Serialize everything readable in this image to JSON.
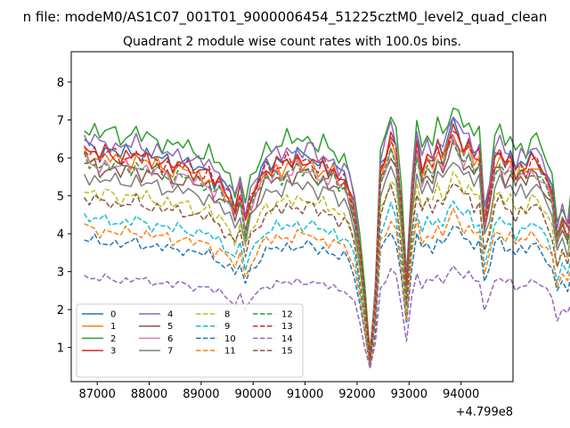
{
  "figure_title": "n file: modeM0/AS1C07_001T01_9000006454_51225cztM0_level2_quad_clean",
  "chart_data": {
    "type": "line",
    "title": "Quadrant 2 module wise count rates with 100.0s bins.",
    "xlabel": "",
    "ylabel": "",
    "x_offset_label": "+4.799e8",
    "xlim": [
      86500,
      95000
    ],
    "ylim": [
      0.1,
      8.8
    ],
    "x_ticks": [
      87000,
      88000,
      89000,
      90000,
      91000,
      92000,
      93000,
      94000
    ],
    "x_tick_labels": [
      "87000",
      "88000",
      "89000",
      "90000",
      "91000",
      "92000",
      "93000",
      "94000"
    ],
    "y_ticks": [
      1,
      2,
      3,
      4,
      5,
      6,
      7,
      8
    ],
    "y_tick_labels": [
      "1",
      "2",
      "3",
      "4",
      "5",
      "6",
      "7",
      "8"
    ],
    "grid": false,
    "legend_position": "lower-left",
    "legend_columns": 4,
    "x_start": 86750,
    "x_step": 100,
    "base_profile": [
      1.0,
      0.97,
      0.99,
      0.95,
      0.98,
      0.96,
      0.97,
      0.94,
      0.97,
      0.95,
      0.98,
      0.94,
      0.96,
      0.93,
      0.95,
      0.92,
      0.94,
      0.9,
      0.93,
      0.91,
      0.92,
      0.89,
      0.9,
      0.88,
      0.9,
      0.84,
      0.86,
      0.81,
      0.8,
      0.74,
      0.82,
      0.68,
      0.78,
      0.82,
      0.87,
      0.92,
      0.9,
      0.94,
      0.91,
      0.95,
      0.92,
      0.96,
      0.93,
      0.95,
      0.94,
      0.9,
      0.93,
      0.89,
      0.91,
      0.86,
      0.88,
      0.82,
      0.74,
      0.56,
      0.35,
      0.12,
      0.38,
      0.9,
      0.96,
      1.04,
      0.98,
      0.74,
      0.42,
      0.8,
      1.02,
      0.9,
      0.96,
      0.92,
      1.0,
      0.95,
      1.02,
      1.08,
      1.04,
      0.98,
      1.01,
      0.94,
      0.97,
      0.7,
      0.8,
      0.95,
      0.98,
      0.92,
      0.95,
      0.88,
      0.93,
      0.9,
      0.95,
      0.94,
      0.9,
      0.86,
      0.8,
      0.62,
      0.7,
      0.64,
      0.78,
      0.85,
      0.45
    ],
    "series": [
      {
        "name": "0",
        "color": "#1f77b4",
        "dash": "solid",
        "base": 6.4
      },
      {
        "name": "1",
        "color": "#ff7f0e",
        "dash": "solid",
        "base": 6.2
      },
      {
        "name": "2",
        "color": "#2ca02c",
        "dash": "solid",
        "base": 6.9
      },
      {
        "name": "3",
        "color": "#d62728",
        "dash": "solid",
        "base": 6.3
      },
      {
        "name": "4",
        "color": "#9467bd",
        "dash": "solid",
        "base": 6.6
      },
      {
        "name": "5",
        "color": "#8c564b",
        "dash": "solid",
        "base": 5.9
      },
      {
        "name": "6",
        "color": "#e377c2",
        "dash": "solid",
        "base": 6.0
      },
      {
        "name": "7",
        "color": "#7f7f7f",
        "dash": "solid",
        "base": 5.6
      },
      {
        "name": "8",
        "color": "#bcbd22",
        "dash": "dashed",
        "base": 5.2
      },
      {
        "name": "9",
        "color": "#17becf",
        "dash": "dashed",
        "base": 4.5
      },
      {
        "name": "10",
        "color": "#1f77b4",
        "dash": "dashed",
        "base": 3.9
      },
      {
        "name": "11",
        "color": "#ff7f0e",
        "dash": "dashed",
        "base": 4.2
      },
      {
        "name": "12",
        "color": "#2ca02c",
        "dash": "dashed",
        "base": 6.0
      },
      {
        "name": "13",
        "color": "#d62728",
        "dash": "dashed",
        "base": 6.3
      },
      {
        "name": "14",
        "color": "#9467bd",
        "dash": "dashed",
        "base": 2.9
      },
      {
        "name": "15",
        "color": "#8c564b",
        "dash": "dashed",
        "base": 5.0
      }
    ]
  }
}
